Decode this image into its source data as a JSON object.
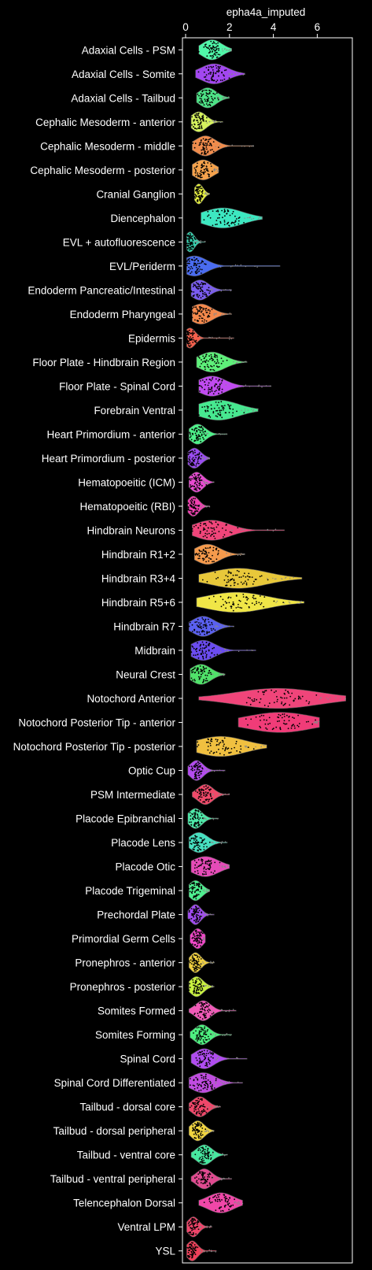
{
  "chart_data": {
    "type": "violin",
    "xlabel": "epha4a_imputed",
    "xlim": [
      -0.05,
      7.6
    ],
    "xticks": [
      0,
      2,
      4,
      6
    ],
    "tick_labels": [
      "0",
      "2",
      "4",
      "6"
    ],
    "xaxis_position": "top",
    "grid": false,
    "background": "#000000",
    "categories": [
      {
        "name": "Adaxial Cells - PSM",
        "color": "#50f7a9",
        "median": 1.2,
        "spread": 0.45,
        "min": 0.6,
        "max": 2.1
      },
      {
        "name": "Adaxial Cells - Somite",
        "color": "#a247f0",
        "median": 1.3,
        "spread": 0.6,
        "min": 0.45,
        "max": 2.7
      },
      {
        "name": "Adaxial Cells - Tailbud",
        "color": "#4ee387",
        "median": 1.0,
        "spread": 0.4,
        "min": 0.5,
        "max": 2.0
      },
      {
        "name": "Cephalic Mesoderm - anterior",
        "color": "#d6f25d",
        "median": 0.6,
        "spread": 0.35,
        "min": 0.25,
        "max": 1.7
      },
      {
        "name": "Cephalic Mesoderm - middle",
        "color": "#f08c4c",
        "median": 0.9,
        "spread": 0.45,
        "min": 0.3,
        "max": 3.1
      },
      {
        "name": "Cephalic Mesoderm - posterior",
        "color": "#f5a24c",
        "median": 0.8,
        "spread": 0.45,
        "min": 0.3,
        "max": 1.5
      },
      {
        "name": "Cranial Ganglion",
        "color": "#e6f040",
        "median": 0.6,
        "spread": 0.2,
        "min": 0.4,
        "max": 1.1
      },
      {
        "name": "Diencephalon",
        "color": "#3de8c1",
        "median": 1.7,
        "spread": 0.9,
        "min": 0.7,
        "max": 3.5
      },
      {
        "name": "EVL + autofluorescence",
        "color": "#35d3b0",
        "median": 0.2,
        "spread": 0.2,
        "min": 0.05,
        "max": 0.9
      },
      {
        "name": "EVL/Periderm",
        "color": "#4a6cf0",
        "median": 0.4,
        "spread": 0.55,
        "min": 0.05,
        "max": 4.3
      },
      {
        "name": "Endoderm Pancreatic/Intestinal",
        "color": "#7a5cf0",
        "median": 0.65,
        "spread": 0.4,
        "min": 0.25,
        "max": 2.1
      },
      {
        "name": "Endoderm Pharyngeal",
        "color": "#f5894c",
        "median": 0.7,
        "spread": 0.5,
        "min": 0.3,
        "max": 2.1
      },
      {
        "name": "Epidermis",
        "color": "#f5604c",
        "median": 0.2,
        "spread": 0.25,
        "min": 0.05,
        "max": 2.2
      },
      {
        "name": "Floor Plate - Hindbrain Region",
        "color": "#5ef07a",
        "median": 1.2,
        "spread": 0.6,
        "min": 0.5,
        "max": 2.8
      },
      {
        "name": "Floor Plate - Spinal Cord",
        "color": "#c04bf0",
        "median": 1.2,
        "spread": 0.6,
        "min": 0.6,
        "max": 3.9
      },
      {
        "name": "Forebrain Ventral",
        "color": "#47e890",
        "median": 1.5,
        "spread": 0.9,
        "min": 0.6,
        "max": 3.3
      },
      {
        "name": "Heart Primordium - anterior",
        "color": "#4ef08a",
        "median": 0.55,
        "spread": 0.35,
        "min": 0.15,
        "max": 1.9
      },
      {
        "name": "Heart Primordium - posterior",
        "color": "#9a4cf0",
        "median": 0.4,
        "spread": 0.3,
        "min": 0.1,
        "max": 1.1
      },
      {
        "name": "Hematopoeitic (ICM)",
        "color": "#e64bd0",
        "median": 0.5,
        "spread": 0.3,
        "min": 0.15,
        "max": 1.3
      },
      {
        "name": "Hematopoeitic (RBI)",
        "color": "#f040b0",
        "median": 0.35,
        "spread": 0.25,
        "min": 0.1,
        "max": 1.1
      },
      {
        "name": "Hindbrain Neurons",
        "color": "#f0457a",
        "median": 1.2,
        "spread": 0.8,
        "min": 0.3,
        "max": 4.5
      },
      {
        "name": "Hindbrain R1+2",
        "color": "#f59a4c",
        "median": 1.0,
        "spread": 0.55,
        "min": 0.4,
        "max": 2.7
      },
      {
        "name": "Hindbrain R3+4",
        "color": "#e8c83a",
        "median": 2.4,
        "spread": 1.3,
        "min": 0.6,
        "max": 5.3
      },
      {
        "name": "Hindbrain R5+6",
        "color": "#f0e647",
        "median": 2.3,
        "spread": 1.4,
        "min": 0.5,
        "max": 5.4
      },
      {
        "name": "Hindbrain R7",
        "color": "#5a60f0",
        "median": 0.8,
        "spread": 0.5,
        "min": 0.15,
        "max": 2.2
      },
      {
        "name": "Midbrain",
        "color": "#6b4cf0",
        "median": 0.8,
        "spread": 0.55,
        "min": 0.25,
        "max": 3.2
      },
      {
        "name": "Neural Crest",
        "color": "#50e26a",
        "median": 0.7,
        "spread": 0.45,
        "min": 0.2,
        "max": 1.8
      },
      {
        "name": "Notochord Anterior",
        "color": "#f0457a",
        "median": 4.2,
        "spread": 1.9,
        "min": 0.6,
        "max": 7.3
      },
      {
        "name": "Notochord Posterior Tip - anterior",
        "color": "#f03c78",
        "median": 4.3,
        "spread": 1.5,
        "min": 2.4,
        "max": 6.1
      },
      {
        "name": "Notochord Posterior Tip - posterior",
        "color": "#f0c040",
        "median": 1.6,
        "spread": 1.1,
        "min": 0.5,
        "max": 3.7
      },
      {
        "name": "Optic Cup",
        "color": "#b44cf0",
        "median": 0.5,
        "spread": 0.3,
        "min": 0.1,
        "max": 1.8
      },
      {
        "name": "PSM Intermediate",
        "color": "#f04a6a",
        "median": 0.9,
        "spread": 0.35,
        "min": 0.3,
        "max": 2.0
      },
      {
        "name": "Placode Epibranchial",
        "color": "#4ee8a8",
        "median": 0.45,
        "spread": 0.3,
        "min": 0.1,
        "max": 1.5
      },
      {
        "name": "Placode Lens",
        "color": "#47e0c0",
        "median": 0.6,
        "spread": 0.4,
        "min": 0.15,
        "max": 1.9
      },
      {
        "name": "Placode Otic",
        "color": "#e64bb8",
        "median": 0.9,
        "spread": 0.6,
        "min": 0.25,
        "max": 2.0
      },
      {
        "name": "Placode Trigeminal",
        "color": "#4ef090",
        "median": 0.45,
        "spread": 0.3,
        "min": 0.15,
        "max": 1.1
      },
      {
        "name": "Prechordal Plate",
        "color": "#a14cf0",
        "median": 0.45,
        "spread": 0.25,
        "min": 0.1,
        "max": 1.3
      },
      {
        "name": "Primordial Germ Cells",
        "color": "#f047c8",
        "median": 0.55,
        "spread": 0.25,
        "min": 0.2,
        "max": 0.9
      },
      {
        "name": "Pronephros - anterior",
        "color": "#f0d040",
        "median": 0.45,
        "spread": 0.25,
        "min": 0.15,
        "max": 1.3
      },
      {
        "name": "Pronephros - posterior",
        "color": "#c8f040",
        "median": 0.5,
        "spread": 0.3,
        "min": 0.15,
        "max": 1.3
      },
      {
        "name": "Somites Formed",
        "color": "#f05ab8",
        "median": 0.8,
        "spread": 0.35,
        "min": 0.15,
        "max": 2.3
      },
      {
        "name": "Somites Forming",
        "color": "#4ef080",
        "median": 0.75,
        "spread": 0.35,
        "min": 0.2,
        "max": 2.1
      },
      {
        "name": "Spinal Cord",
        "color": "#b04cf0",
        "median": 0.85,
        "spread": 0.45,
        "min": 0.25,
        "max": 2.8
      },
      {
        "name": "Spinal Cord Differentiated",
        "color": "#c04ce0",
        "median": 0.8,
        "spread": 0.55,
        "min": 0.15,
        "max": 2.6
      },
      {
        "name": "Tailbud - dorsal core",
        "color": "#f0476a",
        "median": 0.65,
        "spread": 0.35,
        "min": 0.15,
        "max": 1.6
      },
      {
        "name": "Tailbud - dorsal peripheral",
        "color": "#f0d440",
        "median": 0.55,
        "spread": 0.3,
        "min": 0.15,
        "max": 1.3
      },
      {
        "name": "Tailbud - ventral core",
        "color": "#47e8a0",
        "median": 0.85,
        "spread": 0.35,
        "min": 0.25,
        "max": 1.9
      },
      {
        "name": "Tailbud - ventral peripheral",
        "color": "#e04a90",
        "median": 0.85,
        "spread": 0.35,
        "min": 0.25,
        "max": 2.1
      },
      {
        "name": "Telencephalon Dorsal",
        "color": "#f047a8",
        "median": 1.6,
        "spread": 0.6,
        "min": 0.6,
        "max": 2.6
      },
      {
        "name": "Ventral LPM",
        "color": "#f0456a",
        "median": 0.35,
        "spread": 0.25,
        "min": 0.05,
        "max": 1.2
      },
      {
        "name": "YSL",
        "color": "#f0405a",
        "median": 0.3,
        "spread": 0.25,
        "min": 0.05,
        "max": 1.4
      }
    ]
  }
}
